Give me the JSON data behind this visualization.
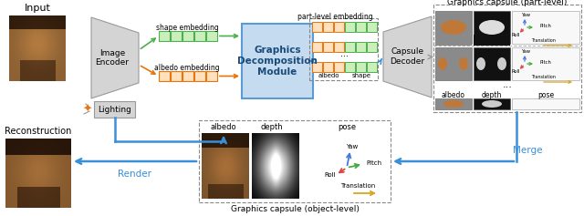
{
  "bg": "#ffffff",
  "orange": "#E8750A",
  "green": "#4CAF50",
  "blue": "#3A8FD9",
  "lblue_fill": "#C5DCF0",
  "lblue_edge": "#5B9BD5",
  "gray_fill": "#D4D4D4",
  "gray_edge": "#999999",
  "gold": "#DAA520",
  "red_axis": "#DD4444",
  "green_axis": "#44AA44",
  "blue_axis": "#4477DD",
  "t_input": "Input",
  "t_recon": "Reconstruction",
  "t_encoder": "Image\nEncoder",
  "t_lighting": "Lighting",
  "t_gdm": "Graphics\nDecomposition\nModule",
  "t_decoder": "Capsule\nDecoder",
  "t_render": "Render",
  "t_merge": "Merge",
  "t_shape_emb": "shape embedding",
  "t_albedo_emb": "albedo embedding",
  "t_part_emb": "part-level embedding",
  "t_albedo": "albedo",
  "t_depth": "depth",
  "t_shape": "shape",
  "t_pose": "pose",
  "t_part_cap": "Graphics capsule (part-level)",
  "t_obj_cap": "Graphics capsule (object-level)",
  "t_yaw": "Yaw",
  "t_pitch": "Pitch",
  "t_roll": "Roll",
  "t_translation": "Translation",
  "t_dots": "..."
}
